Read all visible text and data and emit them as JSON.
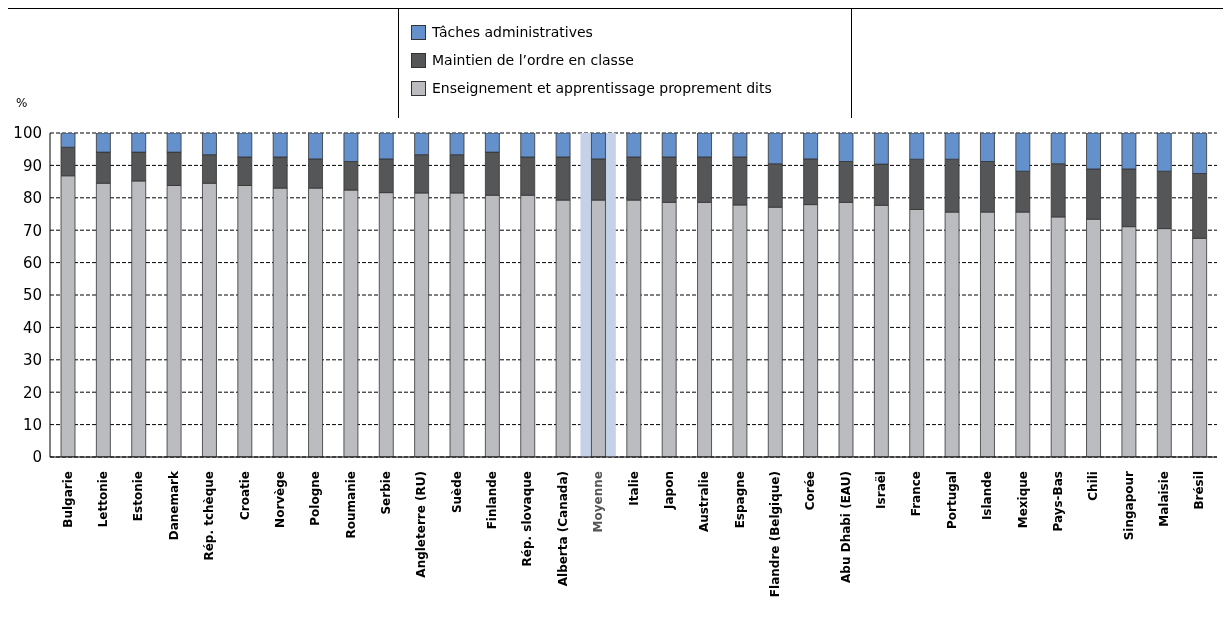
{
  "chart_data": {
    "type": "bar",
    "stacked": true,
    "ylabel": "%",
    "categories": [
      "Bulgarie",
      "Lettonie",
      "Estonie",
      "Danemark",
      "Rép. tchèque",
      "Croatie",
      "Norvège",
      "Pologne",
      "Roumanie",
      "Serbie",
      "Angleterre (RU)",
      "Suède",
      "Finlande",
      "Rép. slovaque",
      "Alberta (Canada)",
      "Moyenne",
      "Italie",
      "Japon",
      "Australie",
      "Espagne",
      "Flandre (Belgique)",
      "Corée",
      "Abu Dhabi (EAU)",
      "Israël",
      "France",
      "Portugal",
      "Islande",
      "Mexique",
      "Pays-Bas",
      "Chili",
      "Singapour",
      "Malaisie",
      "Brésil"
    ],
    "series": [
      {
        "name": "Enseignement et apprentissage proprement dits",
        "color": "#bbbcc0",
        "values": [
          86.8,
          84.5,
          85.2,
          83.8,
          84.5,
          83.8,
          83.0,
          83.0,
          82.4,
          81.6,
          81.5,
          81.5,
          80.8,
          80.8,
          79.3,
          79.3,
          79.3,
          78.6,
          78.6,
          77.8,
          77.1,
          77.9,
          78.6,
          77.7,
          76.4,
          75.6,
          75.6,
          75.6,
          74.1,
          73.4,
          71.1,
          70.5,
          67.5
        ]
      },
      {
        "name": "Maintien de l’ordre en classe",
        "color": "#555657",
        "values": [
          8.8,
          9.6,
          8.9,
          10.3,
          8.8,
          8.8,
          9.6,
          9.0,
          8.8,
          10.4,
          11.8,
          11.8,
          13.3,
          11.8,
          13.3,
          12.7,
          13.3,
          14.0,
          14.0,
          14.8,
          13.4,
          14.1,
          12.6,
          12.7,
          15.5,
          16.3,
          15.6,
          12.6,
          16.4,
          15.5,
          17.8,
          17.7,
          20.0
        ]
      },
      {
        "name": "Tâches administratives",
        "color": "#6490cc",
        "values": [
          4.4,
          5.9,
          5.9,
          5.9,
          6.7,
          7.4,
          7.4,
          8.0,
          8.8,
          8.0,
          6.7,
          6.7,
          5.9,
          7.4,
          7.4,
          8.0,
          7.4,
          7.4,
          7.4,
          7.4,
          9.5,
          8.0,
          8.8,
          9.6,
          8.1,
          8.1,
          8.8,
          11.8,
          9.5,
          11.1,
          11.1,
          11.8,
          12.5
        ]
      }
    ],
    "ylim": [
      0,
      100
    ],
    "yticks": [
      0,
      10,
      20,
      30,
      40,
      50,
      60,
      70,
      80,
      90,
      100
    ],
    "grid": "y",
    "legend": "top",
    "bands": [
      {
        "axis": "x",
        "from": "Moyenne",
        "to": "Moyenne",
        "color": "#c5d1e8"
      }
    ]
  }
}
